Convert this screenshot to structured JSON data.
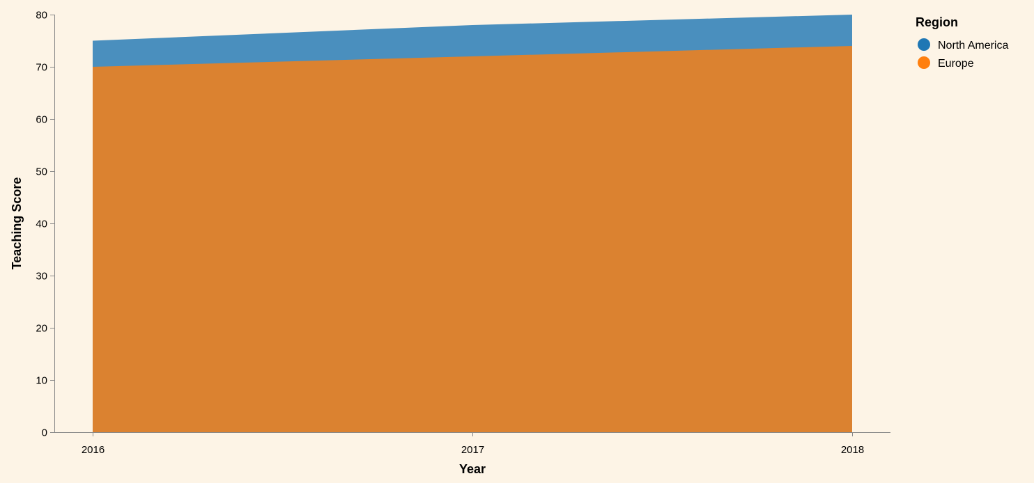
{
  "chart_data": {
    "type": "area",
    "title": "",
    "xlabel": "Year",
    "ylabel": "Teaching Score",
    "categories": [
      "2016",
      "2017",
      "2018"
    ],
    "yticks": [
      0,
      10,
      20,
      30,
      40,
      50,
      60,
      70,
      80
    ],
    "ylim": [
      0,
      80
    ],
    "grid": false,
    "stacked": false,
    "legend": {
      "title": "Region",
      "position": "top-right"
    },
    "series": [
      {
        "name": "North America",
        "values": [
          75,
          78,
          80
        ],
        "color": "#4a8fbe",
        "legend_color": "#1f77b4"
      },
      {
        "name": "Europe",
        "values": [
          70,
          72,
          74
        ],
        "color": "#db8230",
        "legend_color": "#ff7f0e"
      }
    ]
  }
}
